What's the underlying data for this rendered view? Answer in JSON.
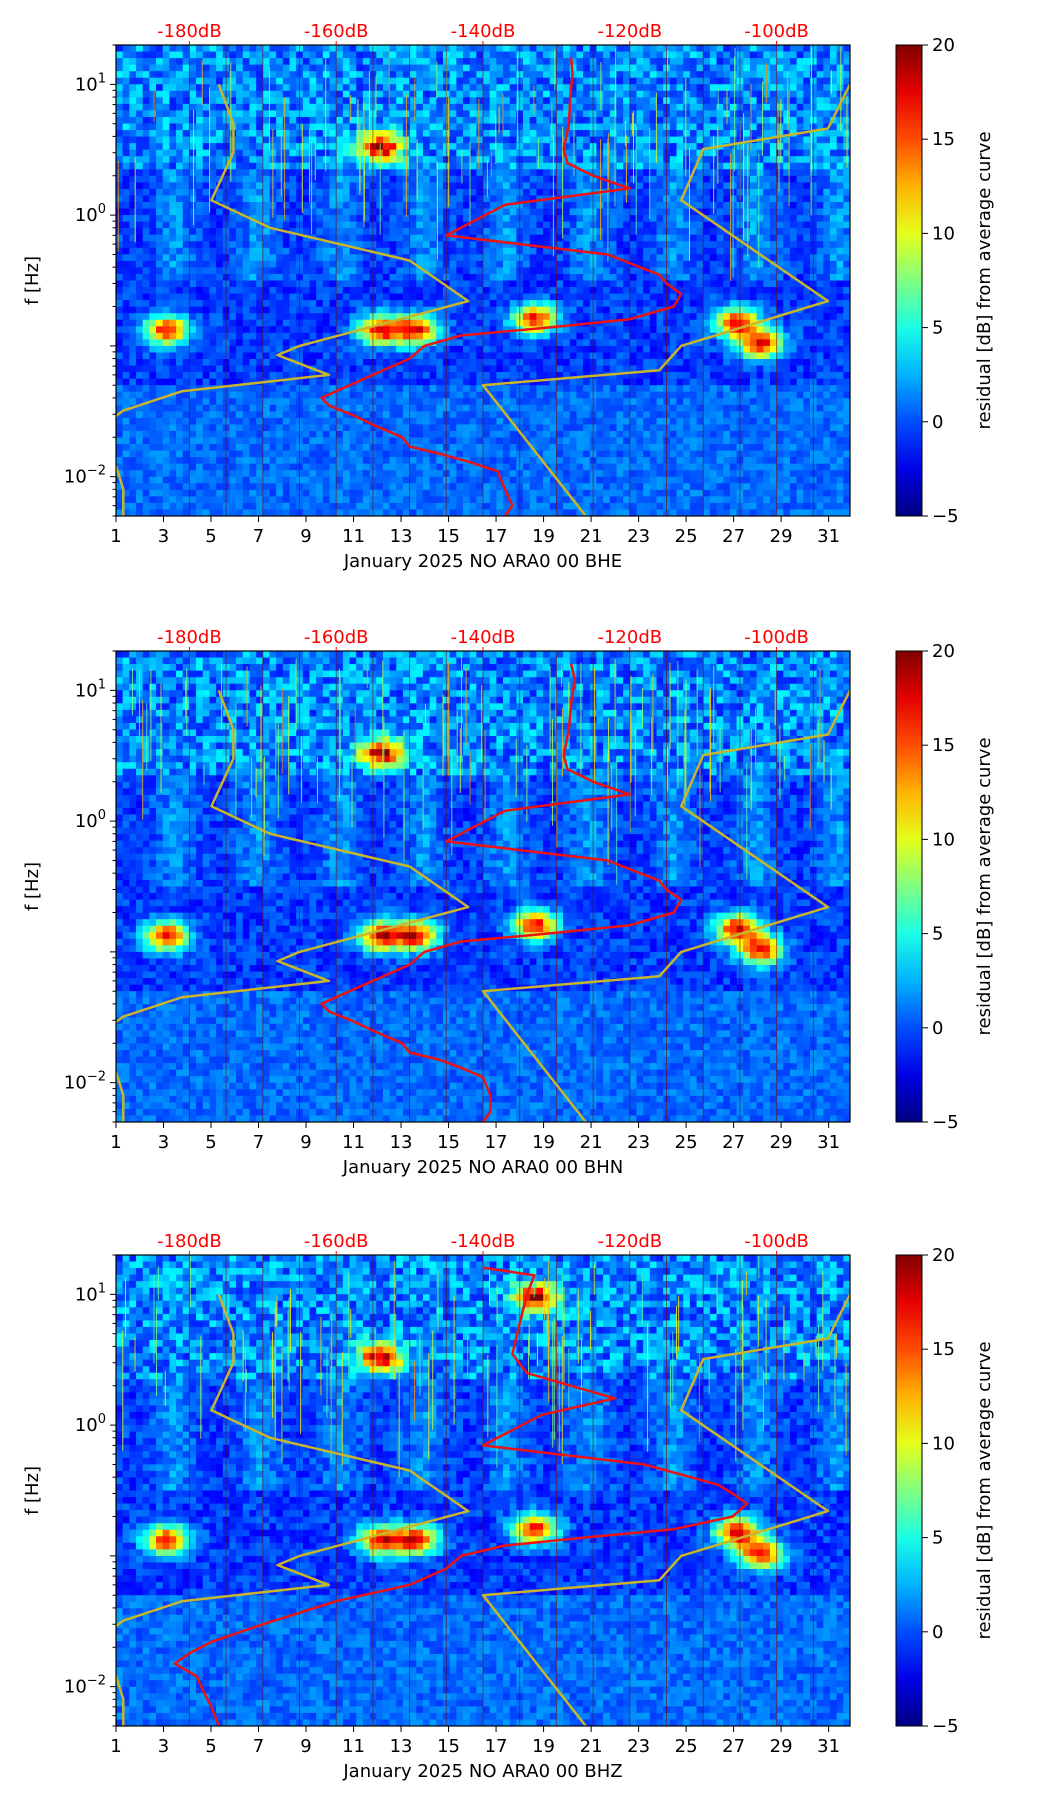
{
  "chart_data": [
    {
      "type": "heatmap",
      "title": "",
      "xlabel": "January 2025 NO ARA0 00 BHE",
      "ylabel": "f [Hz]",
      "x_ticks": [
        "1",
        "3",
        "5",
        "7",
        "9",
        "11",
        "13",
        "15",
        "17",
        "19",
        "21",
        "23",
        "25",
        "27",
        "29",
        "31"
      ],
      "xlim": [
        1,
        31.9
      ],
      "ylim": [
        0.005,
        20
      ],
      "yscale": "log",
      "y_ticks": [
        {
          "base": "10",
          "exp": "−2",
          "value": 0.01
        },
        {
          "base": "10",
          "exp": "0",
          "value": 1
        },
        {
          "base": "10",
          "exp": "1",
          "value": 10
        }
      ],
      "top_axis_labels": [
        "-180dB",
        "-160dB",
        "-140dB",
        "-120dB",
        "-100dB"
      ],
      "top_axis_values": [
        -180,
        -160,
        -140,
        -120,
        -100
      ],
      "top_axis_range": [
        -190,
        -90
      ],
      "colorbar": {
        "label": "residual [dB] from average curve",
        "range": [
          -5,
          20
        ],
        "ticks": [
          "−5",
          "0",
          "5",
          "10",
          "15",
          "20"
        ],
        "tick_values": [
          -5,
          0,
          5,
          10,
          15,
          20
        ],
        "colormap": "jet"
      },
      "series": [
        {
          "name": "average PSD curve",
          "color": "#ee1111",
          "axis": "dB",
          "points": [
            [
              -128.0,
              16
            ],
            [
              -127.8,
              12
            ],
            [
              -128.1,
              8
            ],
            [
              -128.3,
              5
            ],
            [
              -129.0,
              3.2
            ],
            [
              -128.5,
              2.5
            ],
            [
              -125,
              2.0
            ],
            [
              -120,
              1.6
            ],
            [
              -137,
              1.2
            ],
            [
              -145,
              0.7
            ],
            [
              -123,
              0.5
            ],
            [
              -116,
              0.35
            ],
            [
              -115,
              0.3
            ],
            [
              -113,
              0.25
            ],
            [
              -114,
              0.2
            ],
            [
              -120,
              0.16
            ],
            [
              -130,
              0.14
            ],
            [
              -143,
              0.12
            ],
            [
              -148,
              0.1
            ],
            [
              -150,
              0.08
            ],
            [
              -155,
              0.06
            ],
            [
              -160,
              0.045
            ],
            [
              -162,
              0.04
            ],
            [
              -161,
              0.035
            ],
            [
              -158,
              0.03
            ],
            [
              -155,
              0.025
            ],
            [
              -151,
              0.02
            ],
            [
              -150,
              0.017
            ],
            [
              -146,
              0.015
            ],
            [
              -142,
              0.013
            ],
            [
              -138,
              0.011
            ],
            [
              -137,
              0.008
            ],
            [
              -136,
              0.006
            ],
            [
              -137,
              0.005
            ]
          ]
        },
        {
          "name": "noise model bounds",
          "color": "#c9b52c",
          "axis": "dB",
          "points": [
            [
              -176,
              10
            ],
            [
              -174,
              5
            ],
            [
              -174,
              3
            ],
            [
              -177,
              1.3
            ],
            [
              -169,
              0.8
            ],
            [
              -150,
              0.45
            ],
            [
              -142,
              0.22
            ],
            [
              -165,
              0.1
            ],
            [
              -168,
              0.085
            ],
            [
              -161,
              0.06
            ],
            [
              -181,
              0.045
            ],
            [
              -189,
              0.032
            ],
            [
              -193,
              0.022
            ],
            [
              -193,
              0.015
            ],
            [
              -190,
              0.012
            ],
            [
              -189,
              0.008
            ],
            [
              -189,
              0.005
            ]
          ]
        },
        {
          "name": "noise model bounds upper",
          "color": "#c9b52c",
          "axis": "dB",
          "points": [
            [
              -90,
              10
            ],
            [
              -93,
              4.6
            ],
            [
              -110,
              3.2
            ],
            [
              -113,
              1.3
            ],
            [
              -93,
              0.22
            ],
            [
              -113,
              0.1
            ],
            [
              -116,
              0.065
            ],
            [
              -140,
              0.05
            ],
            [
              -126,
              0.005
            ]
          ]
        }
      ],
      "hotspots": [
        [
          3,
          0.14
        ],
        [
          12,
          0.14
        ],
        [
          13.5,
          0.14
        ],
        [
          18.5,
          0.17
        ],
        [
          27,
          0.16
        ],
        [
          28,
          0.11
        ],
        [
          12,
          3.5
        ]
      ]
    },
    {
      "type": "heatmap",
      "title": "",
      "xlabel": "January 2025 NO ARA0 00 BHN",
      "ylabel": "f [Hz]",
      "x_ticks": [
        "1",
        "3",
        "5",
        "7",
        "9",
        "11",
        "13",
        "15",
        "17",
        "19",
        "21",
        "23",
        "25",
        "27",
        "29",
        "31"
      ],
      "xlim": [
        1,
        31.9
      ],
      "ylim": [
        0.005,
        20
      ],
      "yscale": "log",
      "y_ticks": [
        {
          "base": "10",
          "exp": "−2",
          "value": 0.01
        },
        {
          "base": "10",
          "exp": "0",
          "value": 1
        },
        {
          "base": "10",
          "exp": "1",
          "value": 10
        }
      ],
      "top_axis_labels": [
        "-180dB",
        "-160dB",
        "-140dB",
        "-120dB",
        "-100dB"
      ],
      "top_axis_values": [
        -180,
        -160,
        -140,
        -120,
        -100
      ],
      "top_axis_range": [
        -190,
        -90
      ],
      "colorbar": {
        "label": "residual [dB] from average curve",
        "range": [
          -5,
          20
        ],
        "ticks": [
          "−5",
          "0",
          "5",
          "10",
          "15",
          "20"
        ],
        "tick_values": [
          -5,
          0,
          5,
          10,
          15,
          20
        ],
        "colormap": "jet"
      },
      "series": [
        {
          "name": "average PSD curve",
          "color": "#ee1111",
          "axis": "dB",
          "points": [
            [
              -128.0,
              16
            ],
            [
              -127.5,
              12
            ],
            [
              -128.0,
              8
            ],
            [
              -128.3,
              5
            ],
            [
              -129.0,
              3.2
            ],
            [
              -128.5,
              2.5
            ],
            [
              -125,
              2.0
            ],
            [
              -120,
              1.6
            ],
            [
              -137,
              1.2
            ],
            [
              -145,
              0.7
            ],
            [
              -123,
              0.5
            ],
            [
              -116,
              0.35
            ],
            [
              -115,
              0.3
            ],
            [
              -113,
              0.25
            ],
            [
              -114,
              0.2
            ],
            [
              -120,
              0.16
            ],
            [
              -130,
              0.14
            ],
            [
              -143,
              0.12
            ],
            [
              -148,
              0.1
            ],
            [
              -150,
              0.08
            ],
            [
              -155,
              0.06
            ],
            [
              -160,
              0.045
            ],
            [
              -162,
              0.04
            ],
            [
              -161,
              0.035
            ],
            [
              -158,
              0.03
            ],
            [
              -155,
              0.025
            ],
            [
              -151,
              0.02
            ],
            [
              -150,
              0.017
            ],
            [
              -146,
              0.015
            ],
            [
              -143,
              0.013
            ],
            [
              -140,
              0.011
            ],
            [
              -139,
              0.008
            ],
            [
              -139,
              0.006
            ],
            [
              -140,
              0.005
            ]
          ]
        },
        {
          "name": "noise model bounds",
          "color": "#c9b52c",
          "axis": "dB",
          "points": [
            [
              -176,
              10
            ],
            [
              -174,
              5
            ],
            [
              -174,
              3
            ],
            [
              -177,
              1.3
            ],
            [
              -169,
              0.8
            ],
            [
              -150,
              0.45
            ],
            [
              -142,
              0.22
            ],
            [
              -165,
              0.1
            ],
            [
              -168,
              0.085
            ],
            [
              -161,
              0.06
            ],
            [
              -181,
              0.045
            ],
            [
              -189,
              0.032
            ],
            [
              -193,
              0.022
            ],
            [
              -193,
              0.015
            ],
            [
              -190,
              0.012
            ],
            [
              -189,
              0.008
            ],
            [
              -189,
              0.005
            ]
          ]
        },
        {
          "name": "noise model bounds upper",
          "color": "#c9b52c",
          "axis": "dB",
          "points": [
            [
              -90,
              10
            ],
            [
              -93,
              4.6
            ],
            [
              -110,
              3.2
            ],
            [
              -113,
              1.3
            ],
            [
              -93,
              0.22
            ],
            [
              -113,
              0.1
            ],
            [
              -116,
              0.065
            ],
            [
              -140,
              0.05
            ],
            [
              -126,
              0.005
            ]
          ]
        }
      ],
      "hotspots": [
        [
          3,
          0.14
        ],
        [
          12,
          0.14
        ],
        [
          13.5,
          0.14
        ],
        [
          18.5,
          0.17
        ],
        [
          27,
          0.16
        ],
        [
          28,
          0.11
        ],
        [
          12,
          3.5
        ]
      ]
    },
    {
      "type": "heatmap",
      "title": "",
      "xlabel": "January 2025 NO ARA0 00 BHZ",
      "ylabel": "f [Hz]",
      "x_ticks": [
        "1",
        "3",
        "5",
        "7",
        "9",
        "11",
        "13",
        "15",
        "17",
        "19",
        "21",
        "23",
        "25",
        "27",
        "29",
        "31"
      ],
      "xlim": [
        1,
        31.9
      ],
      "ylim": [
        0.005,
        20
      ],
      "yscale": "log",
      "y_ticks": [
        {
          "base": "10",
          "exp": "−2",
          "value": 0.01
        },
        {
          "base": "10",
          "exp": "0",
          "value": 1
        },
        {
          "base": "10",
          "exp": "1",
          "value": 10
        }
      ],
      "top_axis_labels": [
        "-180dB",
        "-160dB",
        "-140dB",
        "-120dB",
        "-100dB"
      ],
      "top_axis_values": [
        -180,
        -160,
        -140,
        -120,
        -100
      ],
      "top_axis_range": [
        -190,
        -90
      ],
      "colorbar": {
        "label": "residual [dB] from average curve",
        "range": [
          -5,
          20
        ],
        "ticks": [
          "−5",
          "0",
          "5",
          "10",
          "15",
          "20"
        ],
        "tick_values": [
          -5,
          0,
          5,
          10,
          15,
          20
        ],
        "colormap": "jet"
      },
      "series": [
        {
          "name": "average PSD curve",
          "color": "#ee1111",
          "axis": "dB",
          "points": [
            [
              -140,
              16
            ],
            [
              -133,
              14
            ],
            [
              -134,
              10
            ],
            [
              -135,
              6
            ],
            [
              -136,
              3.5
            ],
            [
              -134,
              2.5
            ],
            [
              -128,
              2.0
            ],
            [
              -122,
              1.6
            ],
            [
              -132,
              1.2
            ],
            [
              -140,
              0.7
            ],
            [
              -118,
              0.5
            ],
            [
              -108,
              0.35
            ],
            [
              -106,
              0.3
            ],
            [
              -104,
              0.25
            ],
            [
              -106,
              0.2
            ],
            [
              -114,
              0.16
            ],
            [
              -125,
              0.14
            ],
            [
              -137,
              0.12
            ],
            [
              -143,
              0.1
            ],
            [
              -145,
              0.08
            ],
            [
              -150,
              0.06
            ],
            [
              -160,
              0.045
            ],
            [
              -170,
              0.03
            ],
            [
              -177,
              0.022
            ],
            [
              -180,
              0.018
            ],
            [
              -182,
              0.015
            ],
            [
              -179,
              0.012
            ],
            [
              -178,
              0.009
            ],
            [
              -177,
              0.007
            ],
            [
              -176,
              0.005
            ]
          ]
        },
        {
          "name": "noise model bounds",
          "color": "#c9b52c",
          "axis": "dB",
          "points": [
            [
              -176,
              10
            ],
            [
              -174,
              5
            ],
            [
              -174,
              3
            ],
            [
              -177,
              1.3
            ],
            [
              -169,
              0.8
            ],
            [
              -150,
              0.45
            ],
            [
              -142,
              0.22
            ],
            [
              -165,
              0.1
            ],
            [
              -168,
              0.085
            ],
            [
              -161,
              0.06
            ],
            [
              -181,
              0.045
            ],
            [
              -189,
              0.032
            ],
            [
              -193,
              0.022
            ],
            [
              -193,
              0.015
            ],
            [
              -190,
              0.012
            ],
            [
              -189,
              0.008
            ],
            [
              -189,
              0.005
            ]
          ]
        },
        {
          "name": "noise model bounds upper",
          "color": "#c9b52c",
          "axis": "dB",
          "points": [
            [
              -90,
              10
            ],
            [
              -93,
              4.6
            ],
            [
              -110,
              3.2
            ],
            [
              -113,
              1.3
            ],
            [
              -93,
              0.22
            ],
            [
              -113,
              0.1
            ],
            [
              -116,
              0.065
            ],
            [
              -140,
              0.05
            ],
            [
              -126,
              0.005
            ]
          ]
        }
      ],
      "hotspots": [
        [
          3,
          0.14
        ],
        [
          12,
          0.14
        ],
        [
          13.5,
          0.14
        ],
        [
          18.5,
          0.17
        ],
        [
          27,
          0.16
        ],
        [
          28,
          0.11
        ],
        [
          12,
          3.5
        ],
        [
          18.5,
          10
        ]
      ]
    }
  ]
}
